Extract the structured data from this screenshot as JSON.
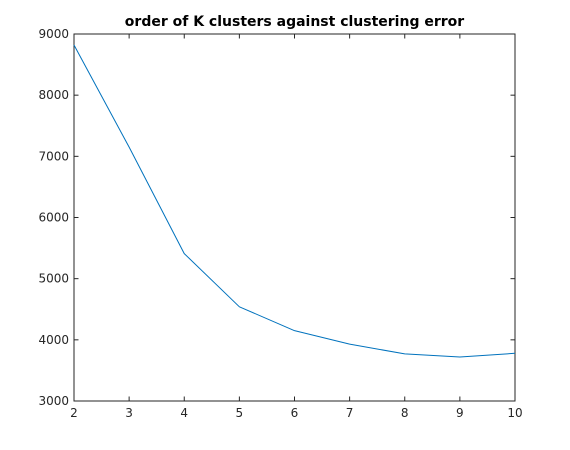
{
  "chart_data": {
    "type": "line",
    "title": "order of K clusters against clustering error",
    "xlabel": "",
    "ylabel": "",
    "xlim": [
      2,
      10
    ],
    "ylim": [
      3000,
      9000
    ],
    "xticks": [
      2,
      3,
      4,
      5,
      6,
      7,
      8,
      9,
      10
    ],
    "yticks": [
      3000,
      4000,
      5000,
      6000,
      7000,
      8000,
      9000
    ],
    "grid": false,
    "series": [
      {
        "x": [
          2,
          3,
          4,
          5,
          6,
          7,
          8,
          9,
          10
        ],
        "values": [
          8820,
          7150,
          5410,
          4540,
          4150,
          3930,
          3770,
          3720,
          3780
        ],
        "color": "#0072BD"
      }
    ]
  }
}
